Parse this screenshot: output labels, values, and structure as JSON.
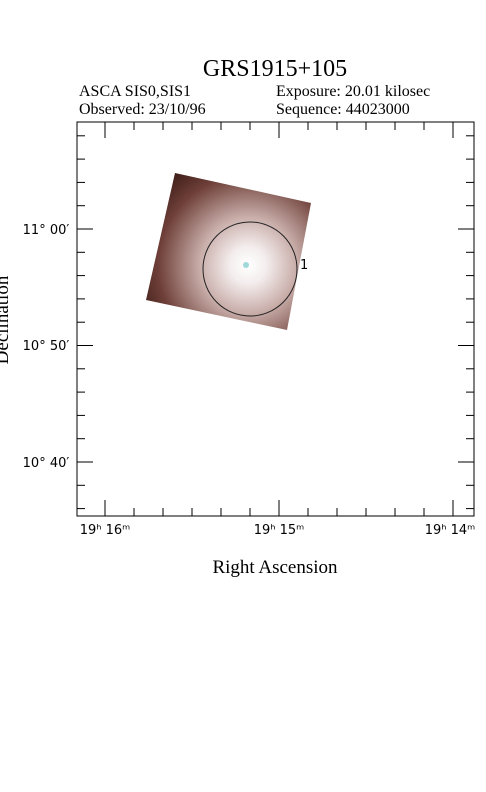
{
  "header": {
    "title": "GRS1915+105",
    "instrument": "ASCA SIS0,SIS1",
    "exposure": "Exposure: 20.01 kilosec",
    "observed": "Observed: 23/10/96",
    "sequence": "Sequence: 44023000"
  },
  "plot": {
    "x_label": "Right Ascension",
    "y_label": "Declination",
    "x_tick_labels": [
      "19ʰ 16ᵐ",
      "19ʰ 15ᵐ",
      "19ʰ 14ᵐ"
    ],
    "y_tick_labels": [
      "11° 00′",
      "10° 50′",
      "10° 40′"
    ],
    "source_label": "1"
  }
}
